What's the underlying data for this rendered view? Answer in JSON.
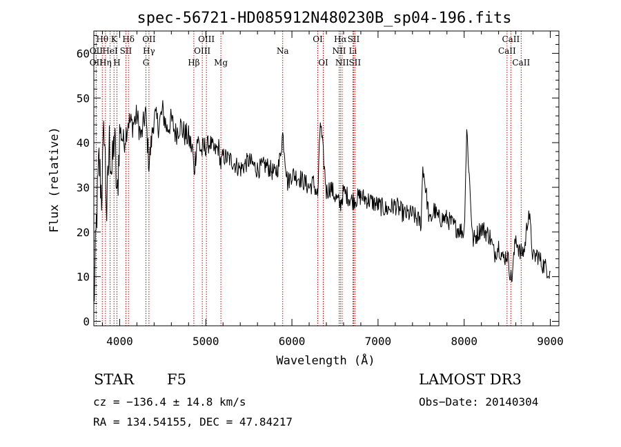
{
  "chart_data": {
    "type": "line",
    "title": "spec-56721-HD085912N480230B_sp04-196.fits",
    "xlabel": "Wavelength (Å)",
    "ylabel": "Flux (relative)",
    "xlim": [
      3700,
      9100
    ],
    "ylim": [
      -1,
      65
    ],
    "xticks": [
      4000,
      5000,
      6000,
      7000,
      8000,
      9000
    ],
    "yticks": [
      0,
      10,
      20,
      30,
      40,
      50,
      60
    ],
    "grid": false,
    "series": [
      {
        "name": "flux",
        "x": [
          3700,
          3730,
          3760,
          3790,
          3820,
          3850,
          3880,
          3910,
          3940,
          3970,
          4000,
          4050,
          4100,
          4150,
          4200,
          4250,
          4300,
          4340,
          4400,
          4450,
          4500,
          4550,
          4600,
          4650,
          4700,
          4750,
          4800,
          4850,
          4861,
          4900,
          4950,
          5000,
          5050,
          5100,
          5150,
          5175,
          5200,
          5300,
          5400,
          5500,
          5600,
          5700,
          5800,
          5850,
          5893,
          5950,
          6000,
          6100,
          6200,
          6250,
          6300,
          6330,
          6400,
          6450,
          6500,
          6560,
          6600,
          6700,
          6800,
          6900,
          7000,
          7100,
          7200,
          7300,
          7400,
          7500,
          7520,
          7600,
          7650,
          7700,
          7800,
          7900,
          8000,
          8030,
          8100,
          8200,
          8300,
          8350,
          8400,
          8450,
          8500,
          8550,
          8600,
          8650,
          8700,
          8750,
          8800,
          8850,
          8900,
          8950,
          9000
        ],
        "y": [
          3,
          22,
          36,
          28,
          44,
          24,
          40,
          33,
          42,
          26,
          43,
          40,
          45,
          44,
          46,
          41,
          47,
          35,
          46,
          44,
          47,
          43,
          45,
          42,
          44,
          42,
          41,
          38,
          33,
          41,
          38,
          39,
          40,
          38,
          39,
          35,
          37,
          36,
          34,
          36,
          34,
          35,
          33,
          35,
          42,
          31,
          33,
          32,
          30,
          31,
          28,
          45,
          29,
          30,
          28,
          26,
          29,
          27,
          28,
          27,
          26,
          25,
          26,
          24,
          24,
          22,
          35,
          22,
          25,
          23,
          23,
          21,
          20,
          43,
          18,
          21,
          19,
          15,
          17,
          14,
          15,
          9,
          19,
          15,
          16,
          25,
          14,
          15,
          13,
          12,
          11
        ]
      }
    ],
    "line_labels": [
      {
        "text": "Hθ",
        "x": 3798,
        "row": 1
      },
      {
        "text": "K",
        "x": 3934,
        "row": 1
      },
      {
        "text": "Hδ",
        "x": 4102,
        "row": 1
      },
      {
        "text": "OII",
        "x": 4341,
        "row": 1
      },
      {
        "text": "OIII",
        "x": 5007,
        "row": 1
      },
      {
        "text": "OI",
        "x": 6300,
        "row": 1
      },
      {
        "text": "Hα",
        "x": 6563,
        "row": 1
      },
      {
        "text": "SII",
        "x": 6716,
        "row": 1
      },
      {
        "text": "CaII",
        "x": 8542,
        "row": 1
      },
      {
        "text": "OII",
        "x": 3727,
        "row": 2
      },
      {
        "text": "HeI",
        "x": 3889,
        "row": 2
      },
      {
        "text": "SII",
        "x": 4072,
        "row": 2
      },
      {
        "text": "Hγ",
        "x": 4340,
        "row": 2
      },
      {
        "text": "OIII",
        "x": 4959,
        "row": 2
      },
      {
        "text": "Na",
        "x": 5893,
        "row": 2
      },
      {
        "text": "NII",
        "x": 6548,
        "row": 2
      },
      {
        "text": "Li",
        "x": 6708,
        "row": 2
      },
      {
        "text": "CaII",
        "x": 8498,
        "row": 2
      },
      {
        "text": "OII",
        "x": 3727,
        "row": 3
      },
      {
        "text": "Hη",
        "x": 3835,
        "row": 3
      },
      {
        "text": "H",
        "x": 3968,
        "row": 3
      },
      {
        "text": "G",
        "x": 4305,
        "row": 3
      },
      {
        "text": "Hβ",
        "x": 4861,
        "row": 3
      },
      {
        "text": "Mg",
        "x": 5175,
        "row": 3
      },
      {
        "text": "OI",
        "x": 6364,
        "row": 3
      },
      {
        "text": "NII",
        "x": 6583,
        "row": 3
      },
      {
        "text": "SII",
        "x": 6731,
        "row": 3
      },
      {
        "text": "CaII",
        "x": 8662,
        "row": 3
      }
    ],
    "line_positions": [
      3727,
      3798,
      3835,
      3889,
      3934,
      3968,
      4072,
      4102,
      4305,
      4340,
      4861,
      4959,
      5007,
      5175,
      5893,
      6300,
      6364,
      6548,
      6563,
      6583,
      6708,
      6716,
      6731,
      8498,
      8542,
      8662
    ],
    "line_color": "#c00000",
    "spectrum_color": "#000000"
  },
  "info": {
    "class": "STAR",
    "subclass": "F5",
    "survey": "LAMOST DR3",
    "cz": "cz = −136.4 ± 14.8 km/s",
    "obs_date": "Obs−Date: 20140304",
    "radec": "RA = 134.54155, DEC =  47.84217"
  }
}
